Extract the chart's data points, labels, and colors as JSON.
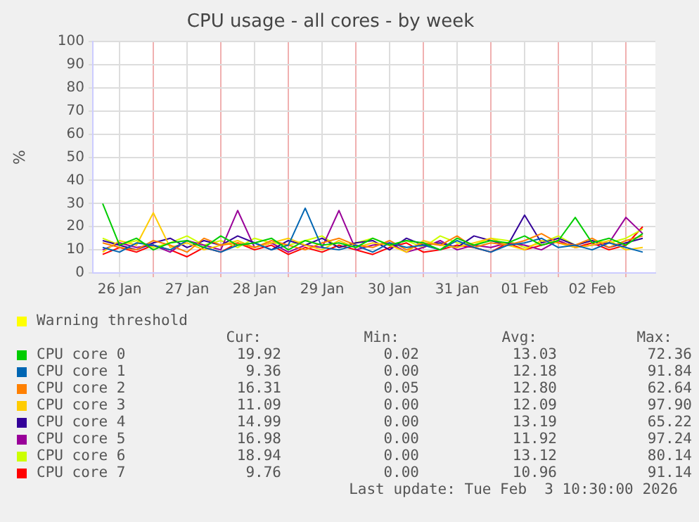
{
  "chart_data": {
    "type": "line",
    "title": "CPU usage - all cores - by week",
    "ylabel": "%",
    "x": [
      "2026-01-26T06:00",
      "2026-01-26T12:00",
      "2026-01-26T18:00",
      "2026-01-27T00:00",
      "2026-01-27T06:00",
      "2026-01-27T12:00",
      "2026-01-27T18:00",
      "2026-01-28T00:00",
      "2026-01-28T06:00",
      "2026-01-28T12:00",
      "2026-01-28T18:00",
      "2026-01-29T00:00",
      "2026-01-29T06:00",
      "2026-01-29T12:00",
      "2026-01-29T18:00",
      "2026-01-30T00:00",
      "2026-01-30T06:00",
      "2026-01-30T12:00",
      "2026-01-30T18:00",
      "2026-01-31T00:00",
      "2026-01-31T06:00",
      "2026-01-31T12:00",
      "2026-01-31T18:00",
      "2026-02-01T00:00",
      "2026-02-01T06:00",
      "2026-02-01T12:00",
      "2026-02-01T18:00",
      "2026-02-02T00:00",
      "2026-02-02T06:00",
      "2026-02-02T12:00",
      "2026-02-02T18:00",
      "2026-02-03T00:00",
      "2026-02-03T06:00"
    ],
    "series": [
      {
        "name": "Warning threshold",
        "color": "#ffff00",
        "values": [
          null,
          null,
          null,
          null,
          null,
          null,
          null,
          null,
          null,
          null,
          null,
          null,
          null,
          null,
          null,
          null,
          null,
          null,
          null,
          null,
          null,
          null,
          null,
          null,
          null,
          null,
          null,
          null,
          null,
          null,
          null,
          null,
          null
        ]
      },
      {
        "name": "CPU core 0",
        "color": "#00cc00",
        "values": [
          30,
          12,
          15,
          10,
          13,
          14,
          11,
          16,
          12,
          13,
          15,
          10,
          14,
          12,
          13,
          11,
          15,
          12,
          14,
          13,
          10,
          15,
          12,
          14,
          13,
          16,
          12,
          14,
          24,
          13,
          15,
          12,
          17
        ]
      },
      {
        "name": "CPU core 1",
        "color": "#0066b3",
        "values": [
          11,
          9,
          13,
          12,
          10,
          14,
          11,
          9,
          12,
          13,
          10,
          12,
          28,
          11,
          10,
          12,
          9,
          13,
          11,
          12,
          10,
          14,
          11,
          9,
          12,
          13,
          15,
          11,
          12,
          10,
          13,
          11,
          9
        ]
      },
      {
        "name": "CPU core 2",
        "color": "#ff8000",
        "values": [
          13,
          11,
          10,
          14,
          12,
          9,
          15,
          12,
          13,
          11,
          14,
          12,
          10,
          13,
          15,
          12,
          11,
          14,
          10,
          13,
          12,
          16,
          11,
          13,
          12,
          14,
          17,
          13,
          12,
          15,
          11,
          14,
          16
        ]
      },
      {
        "name": "CPU core 3",
        "color": "#ffcc00",
        "values": [
          9,
          14,
          12,
          26,
          11,
          13,
          10,
          12,
          14,
          11,
          13,
          15,
          12,
          10,
          14,
          11,
          13,
          12,
          9,
          14,
          12,
          11,
          13,
          15,
          12,
          10,
          14,
          13,
          11,
          12,
          14,
          10,
          11
        ]
      },
      {
        "name": "CPU core 4",
        "color": "#330099",
        "values": [
          14,
          12,
          10,
          13,
          15,
          11,
          14,
          12,
          16,
          13,
          10,
          14,
          12,
          15,
          11,
          13,
          14,
          10,
          15,
          12,
          13,
          11,
          16,
          14,
          12,
          25,
          13,
          15,
          12,
          14,
          11,
          13,
          15
        ]
      },
      {
        "name": "CPU core 5",
        "color": "#990099",
        "values": [
          10,
          13,
          11,
          12,
          9,
          14,
          12,
          10,
          27,
          11,
          13,
          9,
          12,
          11,
          27,
          10,
          12,
          13,
          9,
          11,
          14,
          10,
          12,
          11,
          13,
          12,
          10,
          14,
          11,
          12,
          13,
          24,
          17
        ]
      },
      {
        "name": "CPU core 6",
        "color": "#ccff00",
        "values": [
          15,
          12,
          14,
          11,
          13,
          16,
          12,
          14,
          11,
          15,
          13,
          12,
          14,
          16,
          11,
          13,
          15,
          12,
          14,
          11,
          16,
          13,
          12,
          15,
          14,
          11,
          13,
          16,
          12,
          14,
          13,
          15,
          19
        ]
      },
      {
        "name": "CPU core 7",
        "color": "#ff0000",
        "values": [
          8,
          11,
          9,
          12,
          10,
          7,
          11,
          9,
          13,
          10,
          12,
          8,
          11,
          9,
          12,
          10,
          8,
          11,
          13,
          9,
          10,
          12,
          11,
          9,
          13,
          10,
          12,
          14,
          11,
          13,
          10,
          12,
          20
        ]
      }
    ],
    "xlim": [
      "2026-01-26T02:30",
      "2026-02-03T10:30"
    ],
    "xticks": [
      {
        "value": "2026-01-26T12:00",
        "label": "26 Jan"
      },
      {
        "value": "2026-01-27T00:00",
        "label": null
      },
      {
        "value": "2026-01-27T12:00",
        "label": "27 Jan"
      },
      {
        "value": "2026-01-28T00:00",
        "label": null
      },
      {
        "value": "2026-01-28T12:00",
        "label": "28 Jan"
      },
      {
        "value": "2026-01-29T00:00",
        "label": null
      },
      {
        "value": "2026-01-29T12:00",
        "label": "29 Jan"
      },
      {
        "value": "2026-01-30T00:00",
        "label": null
      },
      {
        "value": "2026-01-30T12:00",
        "label": "30 Jan"
      },
      {
        "value": "2026-01-31T00:00",
        "label": null
      },
      {
        "value": "2026-01-31T12:00",
        "label": "31 Jan"
      },
      {
        "value": "2026-02-01T00:00",
        "label": null
      },
      {
        "value": "2026-02-01T12:00",
        "label": "01 Feb"
      },
      {
        "value": "2026-02-02T00:00",
        "label": null
      },
      {
        "value": "2026-02-02T12:00",
        "label": "02 Feb"
      },
      {
        "value": "2026-02-03T00:00",
        "label": null
      }
    ],
    "ylim": [
      0,
      100
    ],
    "yticks": [
      0,
      10,
      20,
      30,
      40,
      50,
      60,
      70,
      80,
      90,
      100
    ],
    "grid": true,
    "legend": "bottom",
    "annotations": [
      "Cur: Min: Avg: Max:",
      "19.92 0.02 13.03 72.36",
      "9.36 0.00 12.18 91.84",
      "16.31 0.05 12.80 62.64",
      "11.09 0.00 12.09 97.90",
      "14.99 0.00 13.19 65.22",
      "16.98 0.00 11.92 97.24",
      "18.94 0.00 13.12 80.14",
      "9.76 0.00 10.96 91.14",
      "Last update: Tue Feb  3 10:30:00 2026"
    ]
  }
}
